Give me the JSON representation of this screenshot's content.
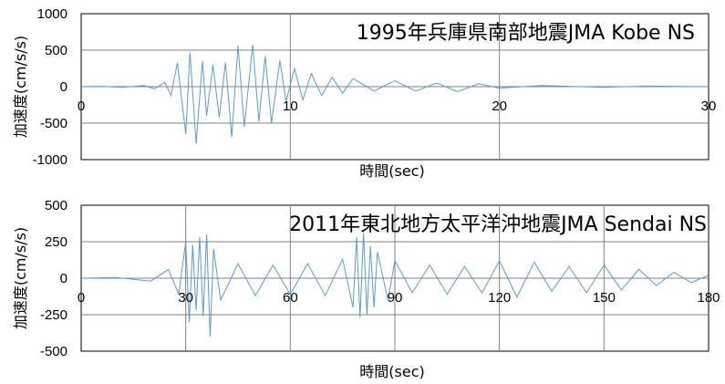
{
  "chart_data": [
    {
      "type": "line",
      "title": "1995年兵庫県南部地震JMA Kobe NS",
      "xlabel": "時間(sec)",
      "ylabel": "加速度(cm/s/s)",
      "xlim": [
        0,
        30
      ],
      "ylim": [
        -1000,
        1000
      ],
      "xticks": [
        "0",
        "10",
        "20",
        "30"
      ],
      "yticks": [
        "1000",
        "500",
        "0",
        "-500",
        "-1000"
      ],
      "grid": true,
      "line_color": "#5b9bd5",
      "series": [
        {
          "x": [
            0,
            1,
            2,
            3,
            3.5,
            4,
            4.3,
            4.6,
            5.0,
            5.2,
            5.5,
            5.8,
            6.0,
            6.3,
            6.6,
            6.9,
            7.2,
            7.5,
            7.8,
            8.2,
            8.5,
            8.8,
            9.1,
            9.5,
            9.8,
            10.2,
            10.6,
            11.0,
            11.5,
            12.0,
            12.5,
            13.0,
            14.0,
            15.0,
            16.0,
            17.0,
            18.0,
            19.0,
            20.0,
            22.0,
            25.0,
            27.0,
            30.0
          ],
          "values": [
            0,
            5,
            -10,
            15,
            -30,
            60,
            -120,
            330,
            -650,
            470,
            -780,
            350,
            -400,
            300,
            -420,
            330,
            -690,
            560,
            -550,
            570,
            -480,
            420,
            -500,
            360,
            -200,
            250,
            -180,
            180,
            -120,
            130,
            -90,
            110,
            -60,
            80,
            -60,
            50,
            -70,
            40,
            -20,
            15,
            -10,
            8,
            0
          ]
        }
      ]
    },
    {
      "type": "line",
      "title": "2011年東北地方太平洋沖地震JMA Sendai NS",
      "xlabel": "時間(sec)",
      "ylabel": "加速度(cm/s/s)",
      "xlim": [
        0,
        180
      ],
      "ylim": [
        -500,
        500
      ],
      "xticks": [
        "0",
        "30",
        "60",
        "90",
        "120",
        "150",
        "180"
      ],
      "yticks": [
        "500",
        "250",
        "0",
        "-250",
        "-500"
      ],
      "grid": true,
      "line_color": "#5b9bd5",
      "series": [
        {
          "x": [
            0,
            10,
            20,
            25,
            28,
            30,
            31,
            32,
            33,
            34,
            35,
            36,
            37,
            38,
            40,
            45,
            50,
            55,
            60,
            65,
            70,
            75,
            78,
            79,
            80,
            81,
            82,
            83,
            84,
            85,
            88,
            90,
            95,
            100,
            105,
            110,
            115,
            120,
            125,
            130,
            135,
            140,
            145,
            150,
            155,
            160,
            165,
            170,
            175,
            180
          ],
          "values": [
            0,
            5,
            -20,
            60,
            -110,
            250,
            -300,
            230,
            -220,
            280,
            -260,
            300,
            -400,
            200,
            -150,
            100,
            -120,
            90,
            -110,
            100,
            -120,
            130,
            -200,
            280,
            -270,
            310,
            -250,
            220,
            -200,
            180,
            -150,
            120,
            -100,
            90,
            -110,
            80,
            -100,
            120,
            -130,
            110,
            -90,
            80,
            -100,
            90,
            -80,
            60,
            -50,
            40,
            -30,
            20
          ]
        }
      ]
    }
  ]
}
